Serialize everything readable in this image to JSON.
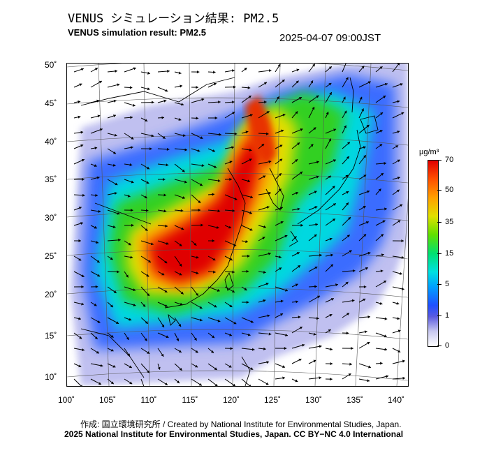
{
  "title_jp": "VENUS シミュレーション結果: PM2.5",
  "title_en": "VENUS simulation result: PM2.5",
  "timestamp": "2025-04-07 09:00JST",
  "lat_labels": [
    "50˚",
    "45˚",
    "40˚",
    "35˚",
    "30˚",
    "25˚",
    "20˚",
    "15˚",
    "10˚"
  ],
  "lon_labels": [
    "100˚",
    "105˚",
    "110˚",
    "115˚",
    "120˚",
    "125˚",
    "130˚",
    "135˚",
    "140˚"
  ],
  "colorbar": {
    "unit": "µg/m³",
    "ticks": [
      "70",
      "50",
      "35",
      "15",
      "5",
      "1",
      "0"
    ]
  },
  "credit_jp": "作成: 国立環境研究所 / Created by National Institute for Environmental Studies, Japan.",
  "credit_en": "2025 National Institute for Environmental Studies, Japan. CC BY−NC 4.0 International",
  "colors": {
    "high": "#e00000",
    "orange": "#ffa000",
    "yellow": "#e0e000",
    "green": "#30d020",
    "cyan": "#00d8e0",
    "blue": "#2060ff",
    "lavender": "#b8b8f0"
  }
}
